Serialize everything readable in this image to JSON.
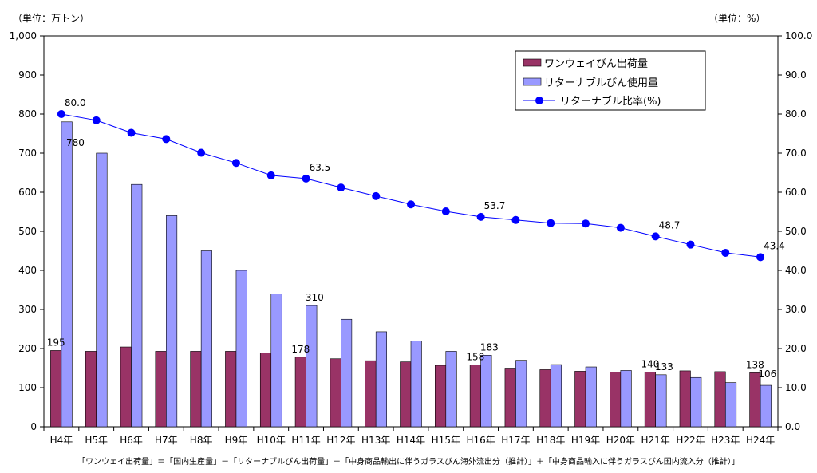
{
  "chart_data": {
    "type": "bar",
    "categories": [
      "H4年",
      "H5年",
      "H6年",
      "H7年",
      "H8年",
      "H9年",
      "H10年",
      "H11年",
      "H12年",
      "H13年",
      "H14年",
      "H15年",
      "H16年",
      "H17年",
      "H18年",
      "H19年",
      "H20年",
      "H21年",
      "H22年",
      "H23年",
      "H24年"
    ],
    "left_unit": "（単位：万トン）",
    "right_unit": "（単位：%）",
    "ylim_left": [
      0,
      1000
    ],
    "ylim_right": [
      0,
      100
    ],
    "left_ticks": [
      "0",
      "100",
      "200",
      "300",
      "400",
      "500",
      "600",
      "700",
      "800",
      "900",
      "1,000"
    ],
    "right_ticks": [
      "0.0",
      "10.0",
      "20.0",
      "30.0",
      "40.0",
      "50.0",
      "60.0",
      "70.0",
      "80.0",
      "90.0",
      "100.0"
    ],
    "grid": false,
    "legend_position": "top-right",
    "series": [
      {
        "name": "ワンウェイびん出荷量",
        "type": "bar",
        "axis": "left",
        "color": "#993366",
        "values": [
          195,
          193,
          204,
          193,
          193,
          193,
          189,
          178,
          174,
          169,
          166,
          157,
          158,
          150,
          146,
          142,
          140,
          140,
          143,
          141,
          138
        ],
        "labels": {
          "0": "195",
          "7": "178",
          "12": "158",
          "17": "140",
          "20": "138"
        }
      },
      {
        "name": "リターナブルびん使用量",
        "type": "bar",
        "axis": "left",
        "color": "#9999ff",
        "values": [
          780,
          700,
          620,
          540,
          450,
          400,
          340,
          310,
          275,
          243,
          219,
          193,
          183,
          170,
          159,
          153,
          144,
          133,
          126,
          113,
          106
        ],
        "labels": {
          "0": "780",
          "7": "310",
          "12": "183",
          "17": "133",
          "20": "106"
        }
      },
      {
        "name": "リターナブル比率(%)",
        "type": "line",
        "axis": "right",
        "color": "#0000ff",
        "values": [
          80.0,
          78.4,
          75.2,
          73.6,
          70.1,
          67.5,
          64.3,
          63.5,
          61.2,
          59.0,
          56.9,
          55.1,
          53.7,
          52.9,
          52.1,
          52.0,
          50.9,
          48.7,
          46.6,
          44.5,
          43.4
        ],
        "labels": {
          "0": "80.0",
          "7": "63.5",
          "12": "53.7",
          "17": "48.7",
          "20": "43.4"
        }
      }
    ],
    "footnote": "「ワンウェイ出荷量」＝「国内生産量」－「リターナブルびん出荷量」－「中身商品輸出に伴うガラスびん海外流出分（推計）」＋「中身商品輸入に伴うガラスびん国内流入分（推計）」"
  }
}
